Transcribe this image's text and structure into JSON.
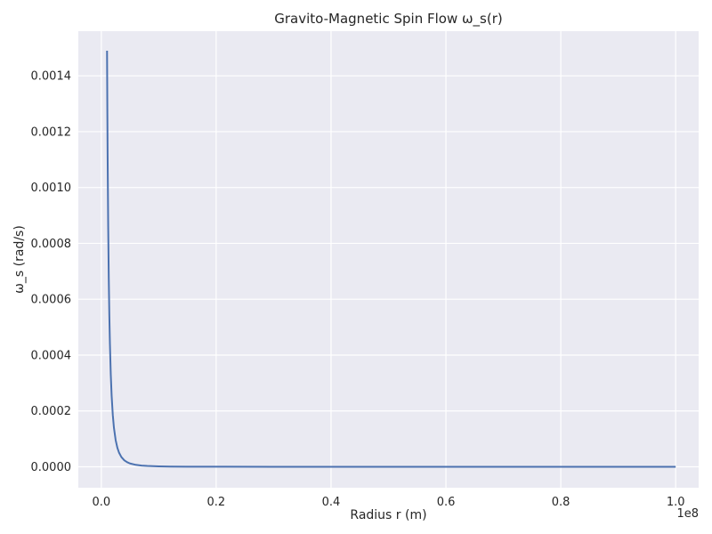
{
  "chart_data": {
    "type": "line",
    "title": "Gravito-Magnetic Spin Flow ω_s(r)",
    "xlabel": "Radius r (m)",
    "ylabel": "ω_s (rad/s)",
    "x_offset_label": "1e8",
    "x_scale": 100000000,
    "xlim": [
      -0.04,
      1.04
    ],
    "ylim": [
      -7.5e-05,
      0.00156
    ],
    "x_ticks": [
      0.0,
      0.2,
      0.4,
      0.6,
      0.8,
      1.0
    ],
    "x_tick_labels": [
      "0.0",
      "0.2",
      "0.4",
      "0.6",
      "0.8",
      "1.0"
    ],
    "y_ticks": [
      0.0,
      0.0002,
      0.0004,
      0.0006,
      0.0008,
      0.001,
      0.0012,
      0.0014
    ],
    "y_tick_labels": [
      "0.0000",
      "0.0002",
      "0.0004",
      "0.0006",
      "0.0008",
      "0.0010",
      "0.0012",
      "0.0014"
    ],
    "grid": true,
    "background": "#EAEAF2",
    "grid_color": "#FFFFFF",
    "series": [
      {
        "color": "#4C72B0",
        "x": [
          0.01,
          0.0105,
          0.011,
          0.012,
          0.013,
          0.014,
          0.015,
          0.0165,
          0.018,
          0.02,
          0.022,
          0.025,
          0.028,
          0.031,
          0.035,
          0.04,
          0.045,
          0.05,
          0.06,
          0.07,
          0.08,
          0.1,
          0.12,
          0.15,
          0.2,
          0.3,
          0.4,
          0.5,
          0.6,
          0.7,
          0.8,
          0.9,
          1.0
        ],
        "y": [
          0.00149,
          0.001287,
          0.00112,
          0.000862,
          0.000678,
          0.000543,
          0.000441,
          0.000331,
          0.000255,
          0.000186,
          0.00014,
          9.54e-05,
          6.79e-05,
          5e-05,
          3.48e-05,
          2.33e-05,
          1.64e-05,
          1.19e-05,
          6.9e-06,
          4.3e-06,
          2.9e-06,
          1.5e-06,
          9e-07,
          4.4e-07,
          1.9e-07,
          6e-08,
          2e-08,
          1e-08,
          0.0,
          0.0,
          0.0,
          0.0,
          0.0
        ]
      }
    ]
  }
}
